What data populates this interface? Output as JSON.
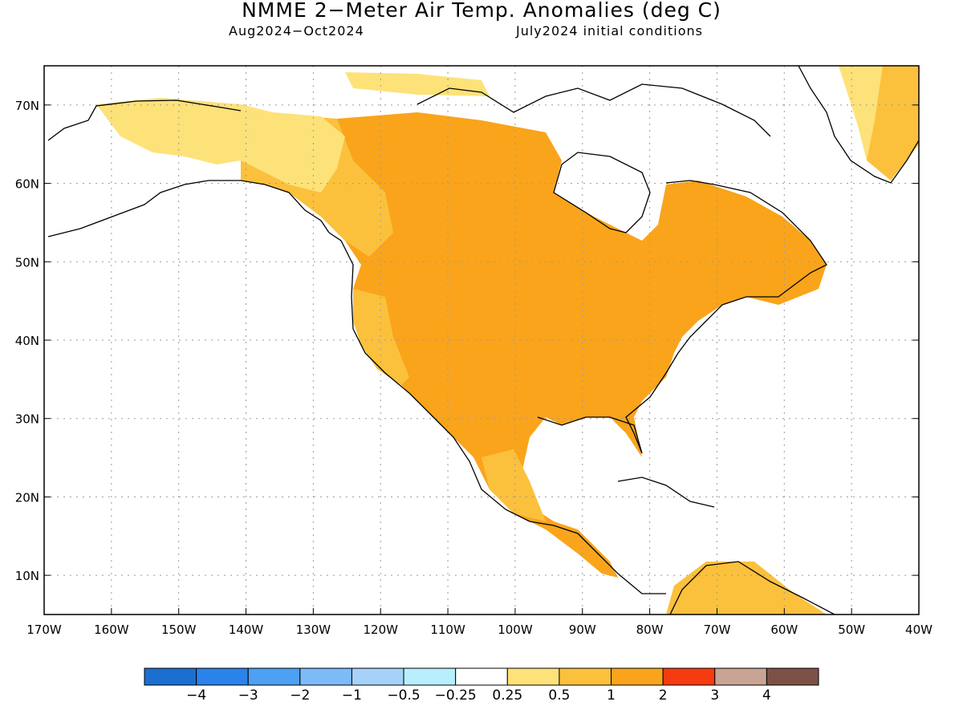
{
  "header": {
    "title": "NMME 2−Meter Air Temp. Anomalies (deg C)",
    "period": "Aug2024−Oct2024",
    "init": "July2024 initial conditions"
  },
  "map": {
    "lat_labels": [
      "70N",
      "60N",
      "50N",
      "40N",
      "30N",
      "20N",
      "10N"
    ],
    "lat_values": [
      70,
      60,
      50,
      40,
      30,
      20,
      10
    ],
    "lon_labels": [
      "170W",
      "160W",
      "150W",
      "140W",
      "130W",
      "120W",
      "110W",
      "100W",
      "90W",
      "80W",
      "70W",
      "60W",
      "50W",
      "40W"
    ],
    "lon_values": [
      -170,
      -160,
      -150,
      -140,
      -130,
      -120,
      -110,
      -100,
      -90,
      -80,
      -70,
      -60,
      -50,
      -40
    ],
    "extent": {
      "lon": [
        -170,
        -40
      ],
      "lat": [
        5,
        75
      ]
    }
  },
  "colorbar": {
    "colors": [
      "#1c6fd1",
      "#2b82ea",
      "#4ea0f5",
      "#7cbaf8",
      "#a6d2fa",
      "#b7f0fc",
      "#ffffff",
      "#fde27a",
      "#fcc13c",
      "#f9a41a",
      "#f73b10",
      "#c9a394",
      "#7b5245"
    ],
    "labels": [
      "−4",
      "−3",
      "−2",
      "−1",
      "−0.5",
      "−0.25",
      "0.25",
      "0.5",
      "1",
      "2",
      "3",
      "4"
    ]
  }
}
